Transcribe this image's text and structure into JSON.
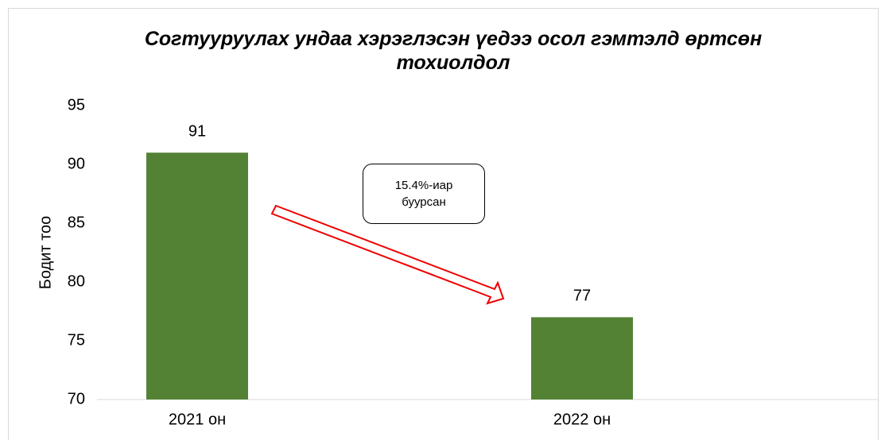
{
  "chart_data": {
    "type": "bar",
    "title": "Согтууруулах ундаа хэрэглэсэн үедээ осол гэмтэлд өртсөн тохиолдол",
    "y_label": "Бодит тоо",
    "categories": [
      "2021 он",
      "2022 он"
    ],
    "values": [
      91,
      77
    ],
    "color": "#548235",
    "ylim": [
      70,
      95
    ],
    "yticks": [
      70,
      75,
      80,
      85,
      90,
      95
    ],
    "grid": false,
    "annotation": "15.4%-иар буурсан"
  }
}
